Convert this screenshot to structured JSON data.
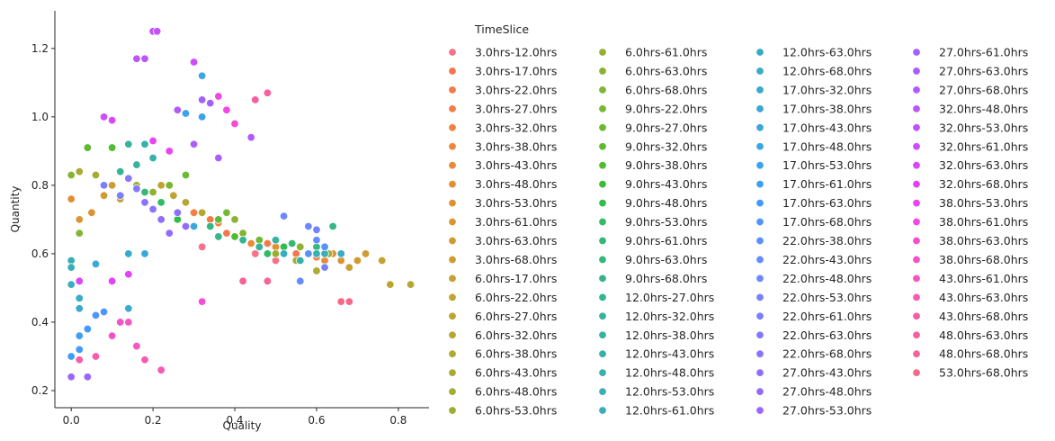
{
  "chart_data": {
    "type": "scatter",
    "xlabel": "Quality",
    "ylabel": "Quantity",
    "xlim": [
      -0.04,
      0.875
    ],
    "ylim": [
      0.15,
      1.31
    ],
    "xticks": [
      0.0,
      0.2,
      0.4,
      0.6,
      0.8
    ],
    "xtick_labels": [
      "0.0",
      "0.2",
      "0.4",
      "0.6",
      "0.8"
    ],
    "yticks": [
      0.2,
      0.4,
      0.6,
      0.8,
      1.0,
      1.2
    ],
    "ytick_labels": [
      "0.2",
      "0.4",
      "0.6",
      "0.8",
      "1.0",
      "1.2"
    ],
    "grid": false,
    "legend": {
      "placement": "outside-right",
      "title": "TimeSlice",
      "columns": 4
    },
    "series": [
      {
        "name": "3.0hrs-12.0hrs",
        "color": "#f77189",
        "points": [
          [
            0.32,
            0.62
          ],
          [
            0.45,
            0.6
          ],
          [
            0.5,
            0.58
          ]
        ]
      },
      {
        "name": "3.0hrs-17.0hrs",
        "color": "#f7754f",
        "points": [
          [
            0.38,
            0.66
          ],
          [
            0.55,
            0.6
          ]
        ]
      },
      {
        "name": "3.0hrs-22.0hrs",
        "color": "#f57a4a",
        "points": [
          [
            0.34,
            0.7
          ],
          [
            0.48,
            0.63
          ]
        ]
      },
      {
        "name": "3.0hrs-27.0hrs",
        "color": "#f37e46",
        "points": [
          [
            0.3,
            0.72
          ],
          [
            0.42,
            0.66
          ]
        ]
      },
      {
        "name": "3.0hrs-32.0hrs",
        "color": "#f08242",
        "points": [
          [
            0.36,
            0.69
          ],
          [
            0.6,
            0.59
          ]
        ]
      },
      {
        "name": "3.0hrs-38.0hrs",
        "color": "#ed863d",
        "points": [
          [
            0.4,
            0.65
          ],
          [
            0.58,
            0.6
          ]
        ]
      },
      {
        "name": "3.0hrs-43.0hrs",
        "color": "#e98a38",
        "points": [
          [
            0.44,
            0.63
          ],
          [
            0.62,
            0.58
          ]
        ]
      },
      {
        "name": "3.0hrs-48.0hrs",
        "color": "#e48e34",
        "points": [
          [
            0.0,
            0.76
          ],
          [
            0.5,
            0.62
          ]
        ]
      },
      {
        "name": "3.0hrs-53.0hrs",
        "color": "#df9232",
        "points": [
          [
            0.05,
            0.72
          ],
          [
            0.64,
            0.6
          ]
        ]
      },
      {
        "name": "3.0hrs-61.0hrs",
        "color": "#d99632",
        "points": [
          [
            0.02,
            0.7
          ],
          [
            0.66,
            0.58
          ]
        ]
      },
      {
        "name": "3.0hrs-63.0hrs",
        "color": "#d39932",
        "points": [
          [
            0.08,
            0.77
          ],
          [
            0.7,
            0.58
          ]
        ]
      },
      {
        "name": "3.0hrs-68.0hrs",
        "color": "#ce9c32",
        "points": [
          [
            0.1,
            0.8
          ],
          [
            0.72,
            0.6
          ]
        ]
      },
      {
        "name": "6.0hrs-17.0hrs",
        "color": "#c89f32",
        "points": [
          [
            0.12,
            0.76
          ],
          [
            0.68,
            0.56
          ]
        ]
      },
      {
        "name": "6.0hrs-22.0hrs",
        "color": "#c2a232",
        "points": [
          [
            0.22,
            0.8
          ],
          [
            0.76,
            0.58
          ]
        ]
      },
      {
        "name": "6.0hrs-27.0hrs",
        "color": "#bca432",
        "points": [
          [
            0.25,
            0.77
          ],
          [
            0.78,
            0.51
          ]
        ]
      },
      {
        "name": "6.0hrs-32.0hrs",
        "color": "#b6a632",
        "points": [
          [
            0.28,
            0.75
          ],
          [
            0.83,
            0.51
          ]
        ]
      },
      {
        "name": "6.0hrs-38.0hrs",
        "color": "#b0a932",
        "points": [
          [
            0.32,
            0.72
          ],
          [
            0.6,
            0.55
          ]
        ]
      },
      {
        "name": "6.0hrs-43.0hrs",
        "color": "#a9ab32",
        "points": [
          [
            0.02,
            0.84
          ],
          [
            0.55,
            0.58
          ]
        ]
      },
      {
        "name": "6.0hrs-48.0hrs",
        "color": "#a2ad32",
        "points": [
          [
            0.06,
            0.83
          ],
          [
            0.63,
            0.6
          ]
        ]
      },
      {
        "name": "6.0hrs-53.0hrs",
        "color": "#9aaf32",
        "points": [
          [
            0.16,
            0.8
          ],
          [
            0.5,
            0.6
          ]
        ]
      },
      {
        "name": "6.0hrs-61.0hrs",
        "color": "#92b132",
        "points": [
          [
            0.2,
            0.78
          ],
          [
            0.56,
            0.62
          ]
        ]
      },
      {
        "name": "6.0hrs-63.0hrs",
        "color": "#8ab332",
        "points": [
          [
            0.0,
            0.83
          ],
          [
            0.4,
            0.7
          ]
        ]
      },
      {
        "name": "6.0hrs-68.0hrs",
        "color": "#81b532",
        "points": [
          [
            0.02,
            0.66
          ],
          [
            0.42,
            0.66
          ]
        ]
      },
      {
        "name": "9.0hrs-22.0hrs",
        "color": "#77b732",
        "points": [
          [
            0.24,
            0.8
          ],
          [
            0.38,
            0.72
          ]
        ]
      },
      {
        "name": "9.0hrs-27.0hrs",
        "color": "#6cb932",
        "points": [
          [
            0.28,
            0.83
          ],
          [
            0.46,
            0.64
          ]
        ]
      },
      {
        "name": "9.0hrs-32.0hrs",
        "color": "#5fba32",
        "points": [
          [
            0.04,
            0.91
          ],
          [
            0.36,
            0.7
          ]
        ]
      },
      {
        "name": "9.0hrs-38.0hrs",
        "color": "#4fbc32",
        "points": [
          [
            0.1,
            0.91
          ],
          [
            0.4,
            0.65
          ]
        ]
      },
      {
        "name": "9.0hrs-43.0hrs",
        "color": "#38be32",
        "points": [
          [
            0.3,
            0.68
          ],
          [
            0.5,
            0.64
          ]
        ]
      },
      {
        "name": "9.0hrs-48.0hrs",
        "color": "#32bc4d",
        "points": [
          [
            0.26,
            0.7
          ],
          [
            0.52,
            0.62
          ]
        ]
      },
      {
        "name": "9.0hrs-53.0hrs",
        "color": "#33ba63",
        "points": [
          [
            0.22,
            0.75
          ],
          [
            0.48,
            0.6
          ]
        ]
      },
      {
        "name": "9.0hrs-61.0hrs",
        "color": "#34b873",
        "points": [
          [
            0.18,
            0.78
          ],
          [
            0.54,
            0.63
          ]
        ]
      },
      {
        "name": "9.0hrs-63.0hrs",
        "color": "#34b77f",
        "points": [
          [
            0.34,
            0.68
          ],
          [
            0.6,
            0.62
          ]
        ]
      },
      {
        "name": "9.0hrs-68.0hrs",
        "color": "#35b589",
        "points": [
          [
            0.36,
            0.65
          ],
          [
            0.64,
            0.68
          ]
        ]
      },
      {
        "name": "12.0hrs-27.0hrs",
        "color": "#35b492",
        "points": [
          [
            0.12,
            0.84
          ],
          [
            0.42,
            0.64
          ]
        ]
      },
      {
        "name": "12.0hrs-32.0hrs",
        "color": "#36b39a",
        "points": [
          [
            0.16,
            0.86
          ],
          [
            0.46,
            0.62
          ]
        ]
      },
      {
        "name": "12.0hrs-38.0hrs",
        "color": "#36b2a1",
        "points": [
          [
            0.14,
            0.92
          ],
          [
            0.5,
            0.64
          ]
        ]
      },
      {
        "name": "12.0hrs-43.0hrs",
        "color": "#36b1a8",
        "points": [
          [
            0.18,
            0.92
          ],
          [
            0.56,
            0.58
          ]
        ]
      },
      {
        "name": "12.0hrs-48.0hrs",
        "color": "#37b0ae",
        "points": [
          [
            0.2,
            0.88
          ],
          [
            0.58,
            0.6
          ]
        ]
      },
      {
        "name": "12.0hrs-53.0hrs",
        "color": "#37afb4",
        "points": [
          [
            0.0,
            0.58
          ],
          [
            0.6,
            0.6
          ]
        ]
      },
      {
        "name": "12.0hrs-61.0hrs",
        "color": "#38aeba",
        "points": [
          [
            0.0,
            0.56
          ],
          [
            0.62,
            0.6
          ]
        ]
      },
      {
        "name": "12.0hrs-63.0hrs",
        "color": "#38adc0",
        "points": [
          [
            0.0,
            0.51
          ],
          [
            0.52,
            0.6
          ]
        ]
      },
      {
        "name": "12.0hrs-68.0hrs",
        "color": "#39acc6",
        "points": [
          [
            0.02,
            0.47
          ],
          [
            0.66,
            0.6
          ]
        ]
      },
      {
        "name": "17.0hrs-32.0hrs",
        "color": "#39aacc",
        "points": [
          [
            0.02,
            0.44
          ],
          [
            0.14,
            0.6
          ]
        ]
      },
      {
        "name": "17.0hrs-38.0hrs",
        "color": "#3aa9d3",
        "points": [
          [
            0.06,
            0.57
          ],
          [
            0.14,
            0.44
          ]
        ]
      },
      {
        "name": "17.0hrs-43.0hrs",
        "color": "#3aa8da",
        "points": [
          [
            0.18,
            0.6
          ],
          [
            0.3,
            0.68
          ]
        ]
      },
      {
        "name": "17.0hrs-48.0hrs",
        "color": "#3ba6e2",
        "points": [
          [
            0.3,
            1.16
          ],
          [
            0.32,
            1.12
          ]
        ]
      },
      {
        "name": "17.0hrs-53.0hrs",
        "color": "#3ca3eb",
        "points": [
          [
            0.28,
            1.01
          ],
          [
            0.32,
            1.0
          ]
        ]
      },
      {
        "name": "17.0hrs-61.0hrs",
        "color": "#3e9ff5",
        "points": [
          [
            0.0,
            0.3
          ],
          [
            0.02,
            0.36
          ]
        ]
      },
      {
        "name": "17.0hrs-63.0hrs",
        "color": "#439afd",
        "points": [
          [
            0.02,
            0.32
          ],
          [
            0.04,
            0.38
          ]
        ]
      },
      {
        "name": "17.0hrs-68.0hrs",
        "color": "#5095fd",
        "points": [
          [
            0.06,
            0.42
          ],
          [
            0.08,
            0.43
          ]
        ]
      },
      {
        "name": "22.0hrs-38.0hrs",
        "color": "#5a91fd",
        "points": [
          [
            0.58,
            0.6
          ],
          [
            0.62,
            0.62
          ]
        ]
      },
      {
        "name": "22.0hrs-43.0hrs",
        "color": "#648cfd",
        "points": [
          [
            0.6,
            0.64
          ],
          [
            0.56,
            0.52
          ]
        ]
      },
      {
        "name": "22.0hrs-48.0hrs",
        "color": "#6c88fd",
        "points": [
          [
            0.52,
            0.71
          ],
          [
            0.58,
            0.68
          ]
        ]
      },
      {
        "name": "22.0hrs-53.0hrs",
        "color": "#7483fd",
        "points": [
          [
            0.6,
            0.67
          ],
          [
            0.62,
            0.56
          ]
        ]
      },
      {
        "name": "22.0hrs-61.0hrs",
        "color": "#7b7efd",
        "points": [
          [
            0.08,
            0.8
          ],
          [
            0.12,
            0.77
          ]
        ]
      },
      {
        "name": "22.0hrs-63.0hrs",
        "color": "#8279fd",
        "points": [
          [
            0.14,
            0.82
          ],
          [
            0.16,
            0.79
          ]
        ]
      },
      {
        "name": "22.0hrs-68.0hrs",
        "color": "#8874fd",
        "points": [
          [
            0.18,
            0.75
          ],
          [
            0.2,
            0.73
          ]
        ]
      },
      {
        "name": "27.0hrs-43.0hrs",
        "color": "#8e6efd",
        "points": [
          [
            0.26,
            0.72
          ],
          [
            0.22,
            0.7
          ]
        ]
      },
      {
        "name": "27.0hrs-48.0hrs",
        "color": "#946afd",
        "points": [
          [
            0.28,
            0.68
          ],
          [
            0.24,
            0.66
          ]
        ]
      },
      {
        "name": "27.0hrs-53.0hrs",
        "color": "#9b66fd",
        "points": [
          [
            0.0,
            0.24
          ],
          [
            0.04,
            0.24
          ]
        ]
      },
      {
        "name": "27.0hrs-61.0hrs",
        "color": "#a362fd",
        "points": [
          [
            0.32,
            1.05
          ],
          [
            0.34,
            1.04
          ]
        ]
      },
      {
        "name": "27.0hrs-63.0hrs",
        "color": "#ab5efd",
        "points": [
          [
            0.3,
            0.92
          ],
          [
            0.36,
            0.88
          ]
        ]
      },
      {
        "name": "27.0hrs-68.0hrs",
        "color": "#b35afd",
        "points": [
          [
            0.26,
            1.02
          ],
          [
            0.44,
            0.94
          ]
        ]
      },
      {
        "name": "32.0hrs-48.0hrs",
        "color": "#bb56fc",
        "points": [
          [
            0.16,
            1.17
          ],
          [
            0.18,
            1.17
          ]
        ]
      },
      {
        "name": "32.0hrs-53.0hrs",
        "color": "#c451fc",
        "points": [
          [
            0.2,
            1.25
          ],
          [
            0.21,
            1.25
          ]
        ]
      },
      {
        "name": "32.0hrs-61.0hrs",
        "color": "#ce4cfc",
        "points": [
          [
            0.3,
            1.16
          ],
          [
            0.08,
            1.0
          ]
        ]
      },
      {
        "name": "32.0hrs-63.0hrs",
        "color": "#d946fb",
        "points": [
          [
            0.1,
            0.99
          ],
          [
            0.02,
            0.52
          ]
        ]
      },
      {
        "name": "32.0hrs-68.0hrs",
        "color": "#e441f8",
        "points": [
          [
            0.14,
            0.54
          ],
          [
            0.1,
            0.52
          ]
        ]
      },
      {
        "name": "38.0hrs-53.0hrs",
        "color": "#ed42f0",
        "points": [
          [
            0.2,
            0.93
          ],
          [
            0.24,
            0.9
          ]
        ]
      },
      {
        "name": "38.0hrs-61.0hrs",
        "color": "#f247e3",
        "points": [
          [
            0.36,
            1.06
          ],
          [
            0.38,
            1.02
          ]
        ]
      },
      {
        "name": "38.0hrs-63.0hrs",
        "color": "#f44dd6",
        "points": [
          [
            0.4,
            0.98
          ],
          [
            0.32,
            0.46
          ]
        ]
      },
      {
        "name": "38.0hrs-68.0hrs",
        "color": "#f552ca",
        "points": [
          [
            0.1,
            0.36
          ],
          [
            0.12,
            0.4
          ]
        ]
      },
      {
        "name": "43.0hrs-61.0hrs",
        "color": "#f656bf",
        "points": [
          [
            0.14,
            0.4
          ],
          [
            0.16,
            0.33
          ]
        ]
      },
      {
        "name": "43.0hrs-63.0hrs",
        "color": "#f65ab4",
        "points": [
          [
            0.18,
            0.29
          ],
          [
            0.22,
            0.26
          ]
        ]
      },
      {
        "name": "43.0hrs-68.0hrs",
        "color": "#f75da9",
        "points": [
          [
            0.02,
            0.29
          ],
          [
            0.06,
            0.3
          ]
        ]
      },
      {
        "name": "48.0hrs-63.0hrs",
        "color": "#f7609e",
        "points": [
          [
            0.45,
            1.05
          ],
          [
            0.48,
            1.07
          ]
        ]
      },
      {
        "name": "48.0hrs-68.0hrs",
        "color": "#f76392",
        "points": [
          [
            0.42,
            0.52
          ],
          [
            0.48,
            0.52
          ]
        ]
      },
      {
        "name": "53.0hrs-68.0hrs",
        "color": "#f76787",
        "points": [
          [
            0.66,
            0.46
          ],
          [
            0.68,
            0.46
          ]
        ]
      }
    ]
  }
}
